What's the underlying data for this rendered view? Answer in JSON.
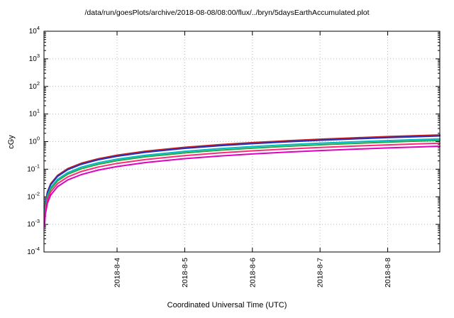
{
  "page": {
    "background": "#ffffff"
  },
  "chart_data": {
    "type": "line",
    "title": "/data/run/goesPlots/archive/2018-08-08/08:00/flux/../bryn/5daysEarthAccumulated.plot",
    "xlabel": "Coordinated Universal Time (UTC)",
    "ylabel": "cGy",
    "y_scale": "log",
    "y_tick_base": "10",
    "y_ticks_exponents": [
      4,
      3,
      2,
      1,
      0,
      -1,
      -2,
      -3,
      -4
    ],
    "ylim_exponents": [
      -4,
      4
    ],
    "x_domain_days": [
      0,
      5.85
    ],
    "x_ticks": [
      {
        "t": 1.08,
        "label": "2018-8-4"
      },
      {
        "t": 2.08,
        "label": "2018-8-5"
      },
      {
        "t": 3.08,
        "label": "2018-8-6"
      },
      {
        "t": 4.08,
        "label": "2018-8-7"
      },
      {
        "t": 5.08,
        "label": "2018-8-8"
      }
    ],
    "grid": true,
    "grid_color": "#b8b8b8",
    "legend": "none",
    "x": [
      0.007,
      0.02,
      0.05,
      0.1,
      0.2,
      0.35,
      0.55,
      0.8,
      1.08,
      1.5,
      2.08,
      2.6,
      3.08,
      3.6,
      4.08,
      4.6,
      5.08,
      5.5,
      5.85
    ],
    "series": [
      {
        "name": "dark-red",
        "color": "#c02020",
        "width": 2,
        "values": [
          0.0021,
          0.006,
          0.015,
          0.0299,
          0.0598,
          0.1047,
          0.1645,
          0.2392,
          0.3229,
          0.4485,
          0.6219,
          0.7774,
          0.9209,
          1.076,
          1.22,
          1.375,
          1.519,
          1.645,
          1.749
        ]
      },
      {
        "name": "blue",
        "color": "#2030c0",
        "width": 2,
        "values": [
          0.0019,
          0.0055,
          0.0137,
          0.0274,
          0.0548,
          0.0959,
          0.1507,
          0.2192,
          0.2959,
          0.411,
          0.5699,
          0.7124,
          0.8439,
          0.9864,
          1.118,
          1.26,
          1.392,
          1.507,
          1.603
        ]
      },
      {
        "name": "cyan",
        "color": "#00b8c8",
        "width": 2,
        "values": [
          0.0015,
          0.0043,
          0.0107,
          0.0214,
          0.0428,
          0.0749,
          0.1177,
          0.1712,
          0.2311,
          0.321,
          0.4451,
          0.5564,
          0.6591,
          0.7704,
          0.8731,
          0.9844,
          1.087,
          1.177,
          1.252
        ]
      },
      {
        "name": "green",
        "color": "#28a848",
        "width": 2,
        "values": [
          0.0013,
          0.0038,
          0.0094,
          0.0188,
          0.0376,
          0.0658,
          0.1034,
          0.1504,
          0.203,
          0.282,
          0.391,
          0.4888,
          0.579,
          0.6768,
          0.767,
          0.8648,
          0.955,
          1.034,
          1.1
        ]
      },
      {
        "name": "pink",
        "color": "#ff2878",
        "width": 2,
        "values": [
          0.0011,
          0.003,
          0.0075,
          0.015,
          0.03,
          0.0525,
          0.0825,
          0.12,
          0.162,
          0.225,
          0.312,
          0.39,
          0.462,
          0.54,
          0.612,
          0.69,
          0.762,
          0.825,
          0.8775
        ]
      },
      {
        "name": "magenta",
        "color": "#e000c0",
        "width": 2,
        "values": [
          0.0008,
          0.0023,
          0.0058,
          0.0116,
          0.0232,
          0.0406,
          0.0638,
          0.0928,
          0.1253,
          0.174,
          0.2413,
          0.3016,
          0.3573,
          0.4176,
          0.4733,
          0.5336,
          0.5893,
          0.638,
          0.6786
        ]
      }
    ]
  }
}
